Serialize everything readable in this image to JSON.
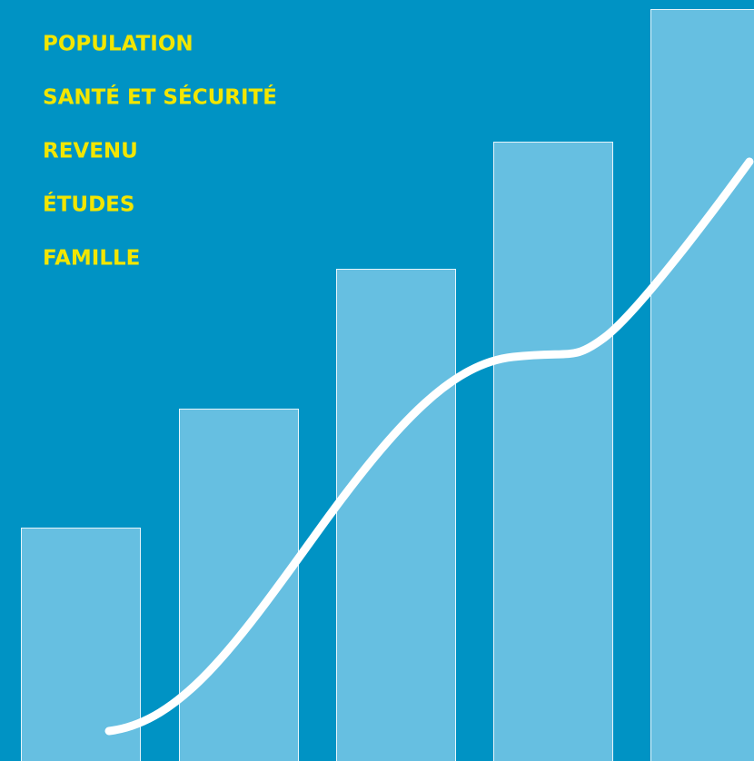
{
  "menu": {
    "items": [
      "POPULATION",
      "SANTÉ ET SÉCURITÉ",
      "REVENU",
      "ÉTUDES",
      "FAMILLE"
    ]
  }
}
